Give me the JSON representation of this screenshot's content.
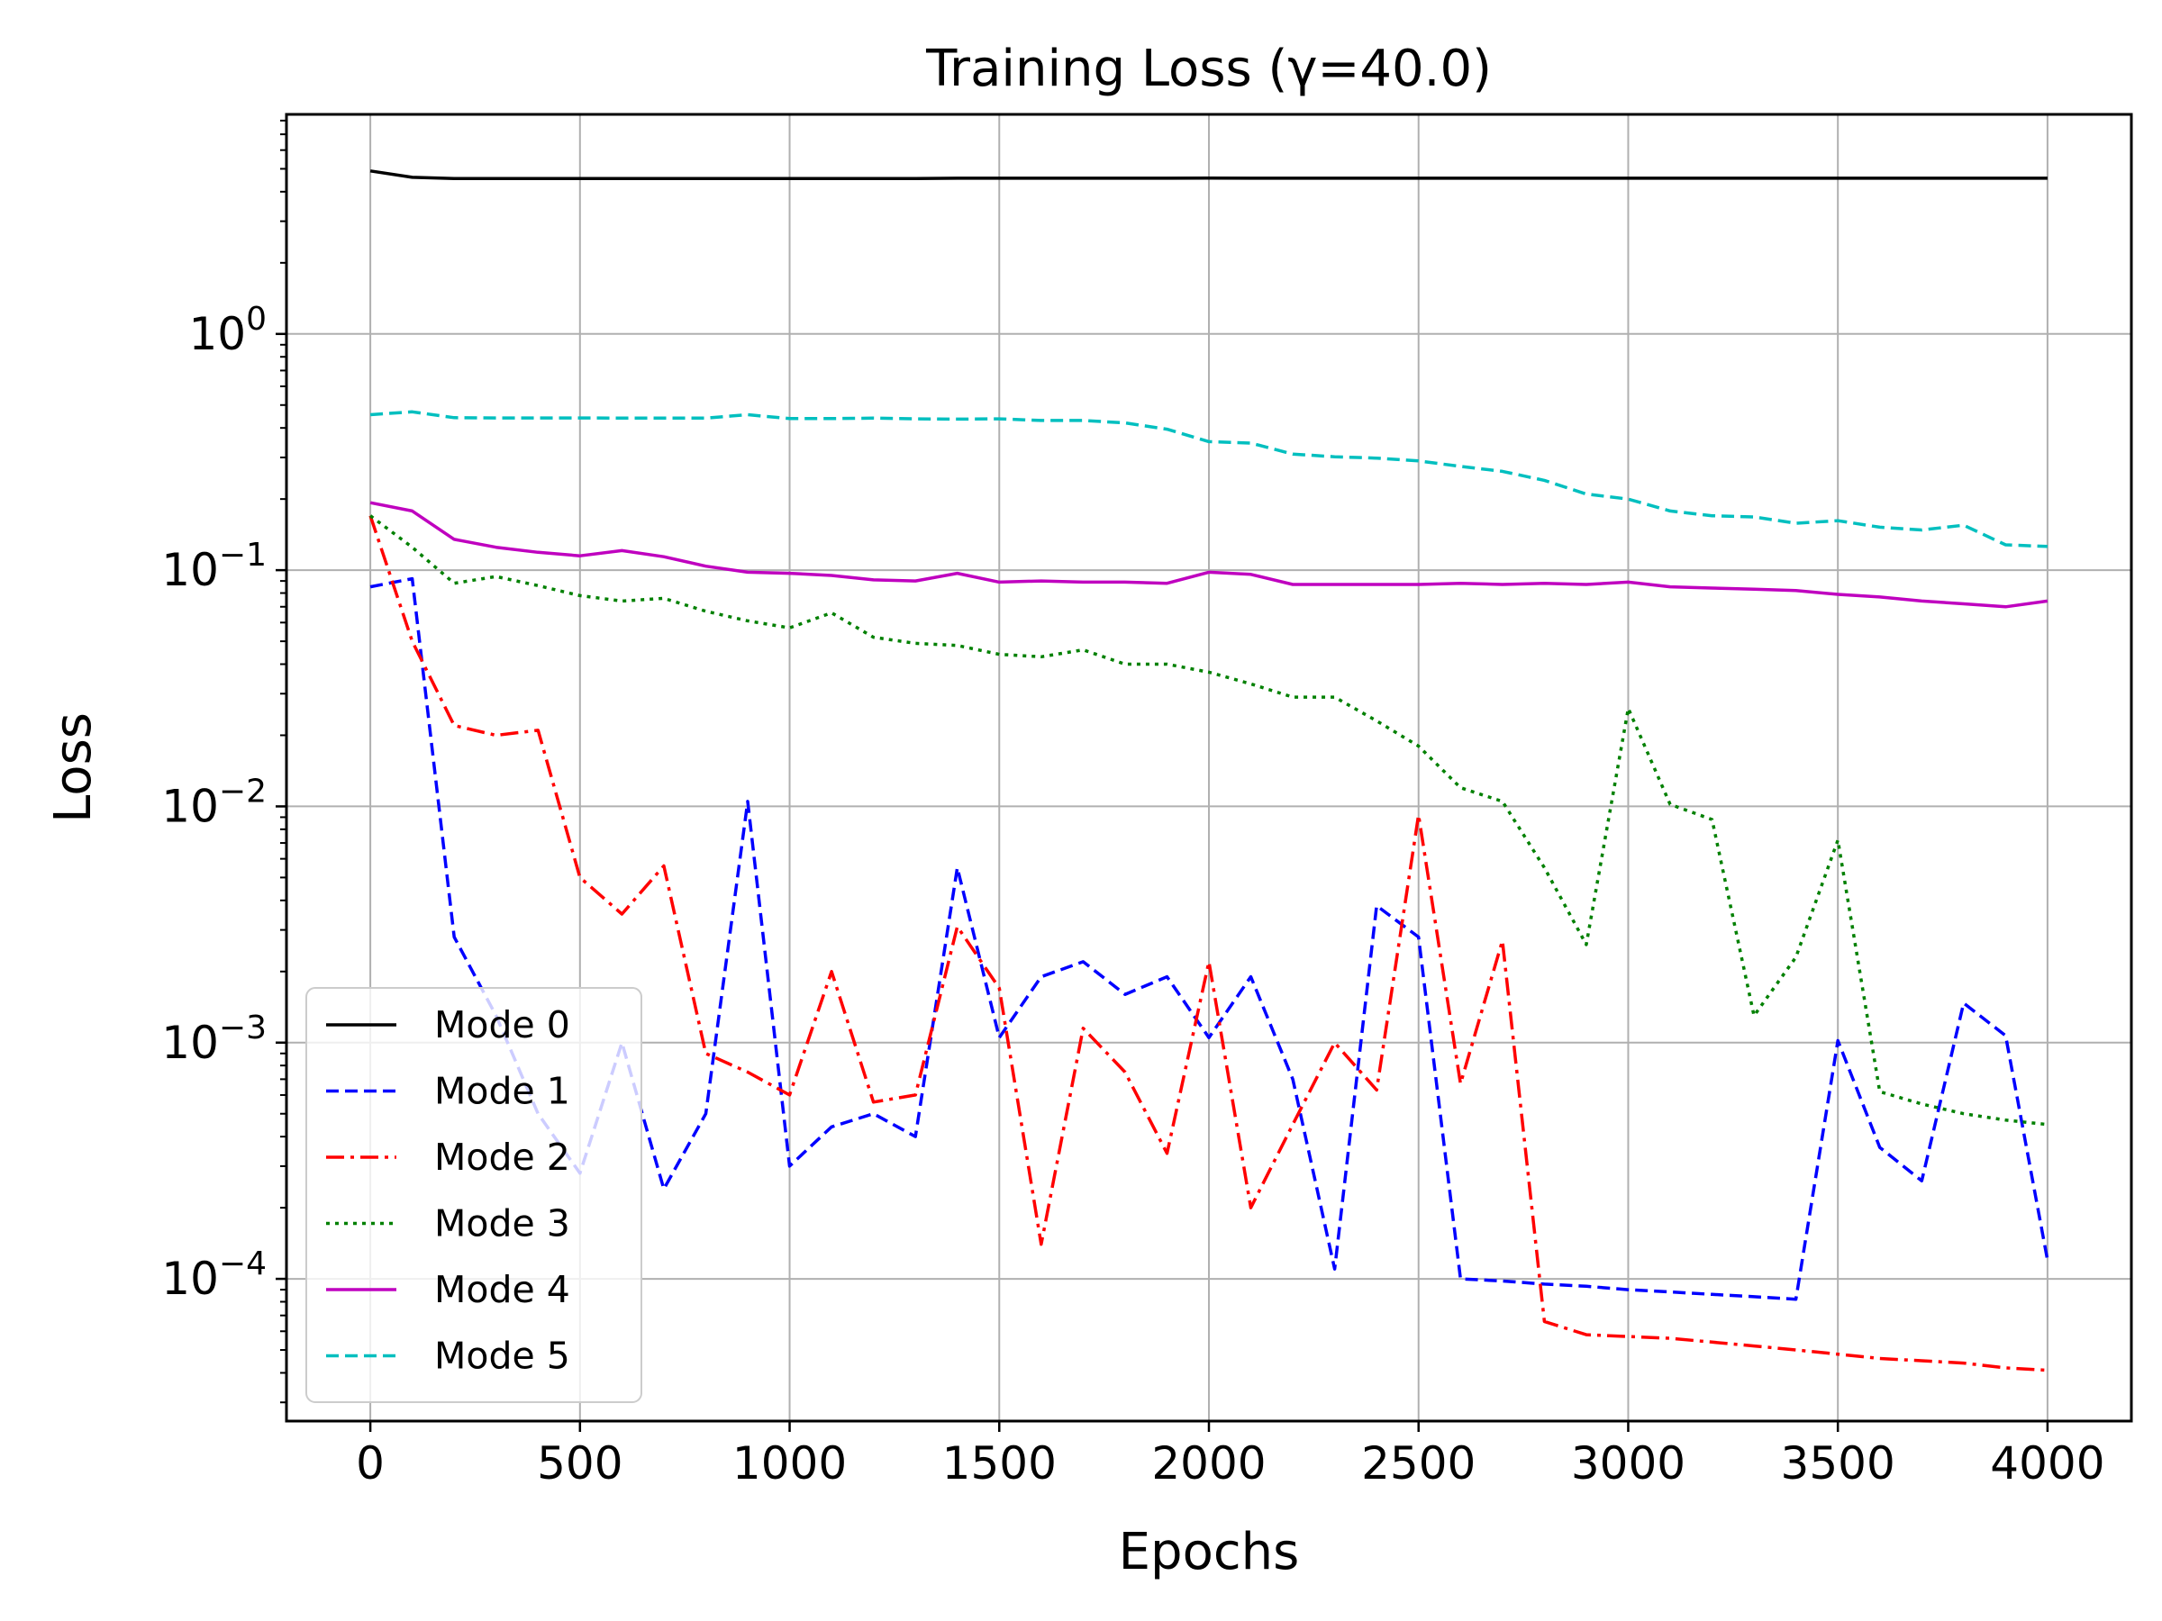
{
  "chart_data": {
    "type": "line",
    "title": "Training Loss (γ=40.0)",
    "xlabel": "Epochs",
    "ylabel": "Loss",
    "yscale": "log",
    "xlim": [
      -200,
      4200
    ],
    "ylim": [
      2.5e-05,
      8.5
    ],
    "grid": true,
    "legend_position": "lower-left",
    "x_ticks": [
      0,
      500,
      1000,
      1500,
      2000,
      2500,
      3000,
      3500,
      4000
    ],
    "y_ticks": [
      {
        "value": 1,
        "base": "10",
        "exp": "0"
      },
      {
        "value": 0.1,
        "base": "10",
        "exp": "−1"
      },
      {
        "value": 0.01,
        "base": "10",
        "exp": "−2"
      },
      {
        "value": 0.001,
        "base": "10",
        "exp": "−3"
      },
      {
        "value": 0.0001,
        "base": "10",
        "exp": "−4"
      }
    ],
    "x": [
      0,
      100,
      200,
      300,
      400,
      500,
      600,
      700,
      800,
      900,
      1000,
      1100,
      1200,
      1300,
      1400,
      1500,
      1600,
      1700,
      1800,
      1900,
      2000,
      2100,
      2200,
      2300,
      2400,
      2500,
      2600,
      2700,
      2800,
      2900,
      3000,
      3100,
      3200,
      3300,
      3400,
      3500,
      3600,
      3700,
      3800,
      3900,
      4000
    ],
    "series": [
      {
        "name": "Mode 0",
        "color": "#000000",
        "dash": "solid",
        "values": [
          4.9,
          4.6,
          4.55,
          4.55,
          4.55,
          4.55,
          4.55,
          4.55,
          4.55,
          4.55,
          4.55,
          4.55,
          4.55,
          4.55,
          4.56,
          4.56,
          4.56,
          4.56,
          4.56,
          4.56,
          4.57,
          4.56,
          4.56,
          4.56,
          4.56,
          4.56,
          4.56,
          4.56,
          4.56,
          4.56,
          4.56,
          4.56,
          4.56,
          4.56,
          4.56,
          4.56,
          4.56,
          4.56,
          4.56,
          4.56,
          4.56
        ]
      },
      {
        "name": "Mode 1",
        "color": "#0000ff",
        "dash": "dashed",
        "values": [
          0.085,
          0.092,
          0.0028,
          0.0013,
          0.0005,
          0.00028,
          0.001,
          0.00024,
          0.0005,
          0.0105,
          0.0003,
          0.00044,
          0.0005,
          0.0004,
          0.0055,
          0.00105,
          0.0019,
          0.0022,
          0.0016,
          0.0019,
          0.00105,
          0.0019,
          0.0007,
          0.00011,
          0.0038,
          0.0028,
          0.0001,
          9.8e-05,
          9.5e-05,
          9.3e-05,
          9e-05,
          8.8e-05,
          8.6e-05,
          8.4e-05,
          8.2e-05,
          0.00102,
          0.00036,
          0.00026,
          0.00147,
          0.00107,
          0.00012
        ]
      },
      {
        "name": "Mode 2",
        "color": "#ff0000",
        "dash": "dashdot",
        "values": [
          0.17,
          0.05,
          0.022,
          0.02,
          0.021,
          0.005,
          0.0035,
          0.0056,
          0.0009,
          0.00075,
          0.0006,
          0.002,
          0.00056,
          0.0006,
          0.0031,
          0.0017,
          0.00014,
          0.00115,
          0.00075,
          0.00034,
          0.0022,
          0.0002,
          0.00045,
          0.001,
          0.00063,
          0.0092,
          0.00067,
          0.0027,
          6.6e-05,
          5.8e-05,
          5.7e-05,
          5.6e-05,
          5.4e-05,
          5.2e-05,
          5e-05,
          4.8e-05,
          4.6e-05,
          4.5e-05,
          4.4e-05,
          4.2e-05,
          4.1e-05
        ]
      },
      {
        "name": "Mode 3",
        "color": "#008000",
        "dash": "dotted",
        "values": [
          0.17,
          0.125,
          0.088,
          0.094,
          0.086,
          0.078,
          0.074,
          0.076,
          0.067,
          0.061,
          0.057,
          0.066,
          0.052,
          0.049,
          0.048,
          0.044,
          0.043,
          0.046,
          0.04,
          0.04,
          0.037,
          0.033,
          0.029,
          0.029,
          0.023,
          0.018,
          0.012,
          0.0105,
          0.0055,
          0.0026,
          0.026,
          0.0102,
          0.0088,
          0.0013,
          0.0023,
          0.0072,
          0.00062,
          0.00055,
          0.0005,
          0.00047,
          0.00045
        ]
      },
      {
        "name": "Mode 4",
        "color": "#bf00bf",
        "dash": "solid",
        "values": [
          0.193,
          0.178,
          0.135,
          0.125,
          0.119,
          0.115,
          0.121,
          0.114,
          0.104,
          0.098,
          0.097,
          0.095,
          0.091,
          0.09,
          0.097,
          0.089,
          0.09,
          0.089,
          0.089,
          0.088,
          0.098,
          0.096,
          0.087,
          0.087,
          0.087,
          0.087,
          0.088,
          0.087,
          0.088,
          0.087,
          0.089,
          0.085,
          0.084,
          0.083,
          0.082,
          0.079,
          0.077,
          0.074,
          0.072,
          0.07,
          0.074
        ]
      },
      {
        "name": "Mode 5",
        "color": "#00bfbf",
        "dash": "dashed",
        "values": [
          0.455,
          0.468,
          0.442,
          0.441,
          0.441,
          0.441,
          0.44,
          0.44,
          0.44,
          0.455,
          0.438,
          0.438,
          0.44,
          0.437,
          0.436,
          0.437,
          0.43,
          0.43,
          0.42,
          0.395,
          0.35,
          0.345,
          0.31,
          0.302,
          0.298,
          0.29,
          0.275,
          0.262,
          0.24,
          0.21,
          0.2,
          0.178,
          0.17,
          0.168,
          0.158,
          0.162,
          0.152,
          0.148,
          0.155,
          0.128,
          0.126
        ]
      }
    ]
  }
}
